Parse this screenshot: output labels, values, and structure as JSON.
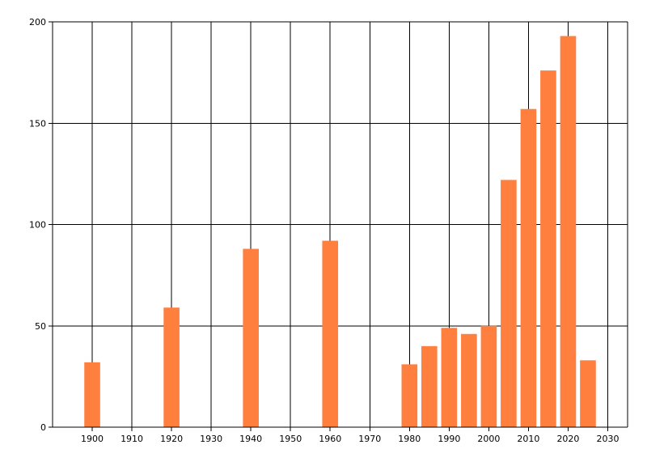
{
  "chart_data": {
    "type": "bar",
    "title": "",
    "xlabel": "",
    "ylabel": "",
    "x": [
      1900,
      1920,
      1940,
      1960,
      1980,
      1985,
      1990,
      1995,
      2000,
      2005,
      2010,
      2015,
      2020,
      2025
    ],
    "values": [
      32,
      59,
      88,
      92,
      31,
      40,
      49,
      46,
      50,
      122,
      157,
      176,
      193,
      33
    ],
    "xlim": [
      1890,
      2035
    ],
    "ylim": [
      0,
      200
    ],
    "x_ticks": [
      "1900",
      "1910",
      "1920",
      "1930",
      "1940",
      "1950",
      "1960",
      "1970",
      "1980",
      "1990",
      "2000",
      "2010",
      "2020",
      "2030"
    ],
    "y_ticks": [
      "0",
      "50",
      "100",
      "150",
      "200"
    ],
    "grid": true,
    "bar_color": "#ff7f3f",
    "grid_color": "#000000"
  }
}
